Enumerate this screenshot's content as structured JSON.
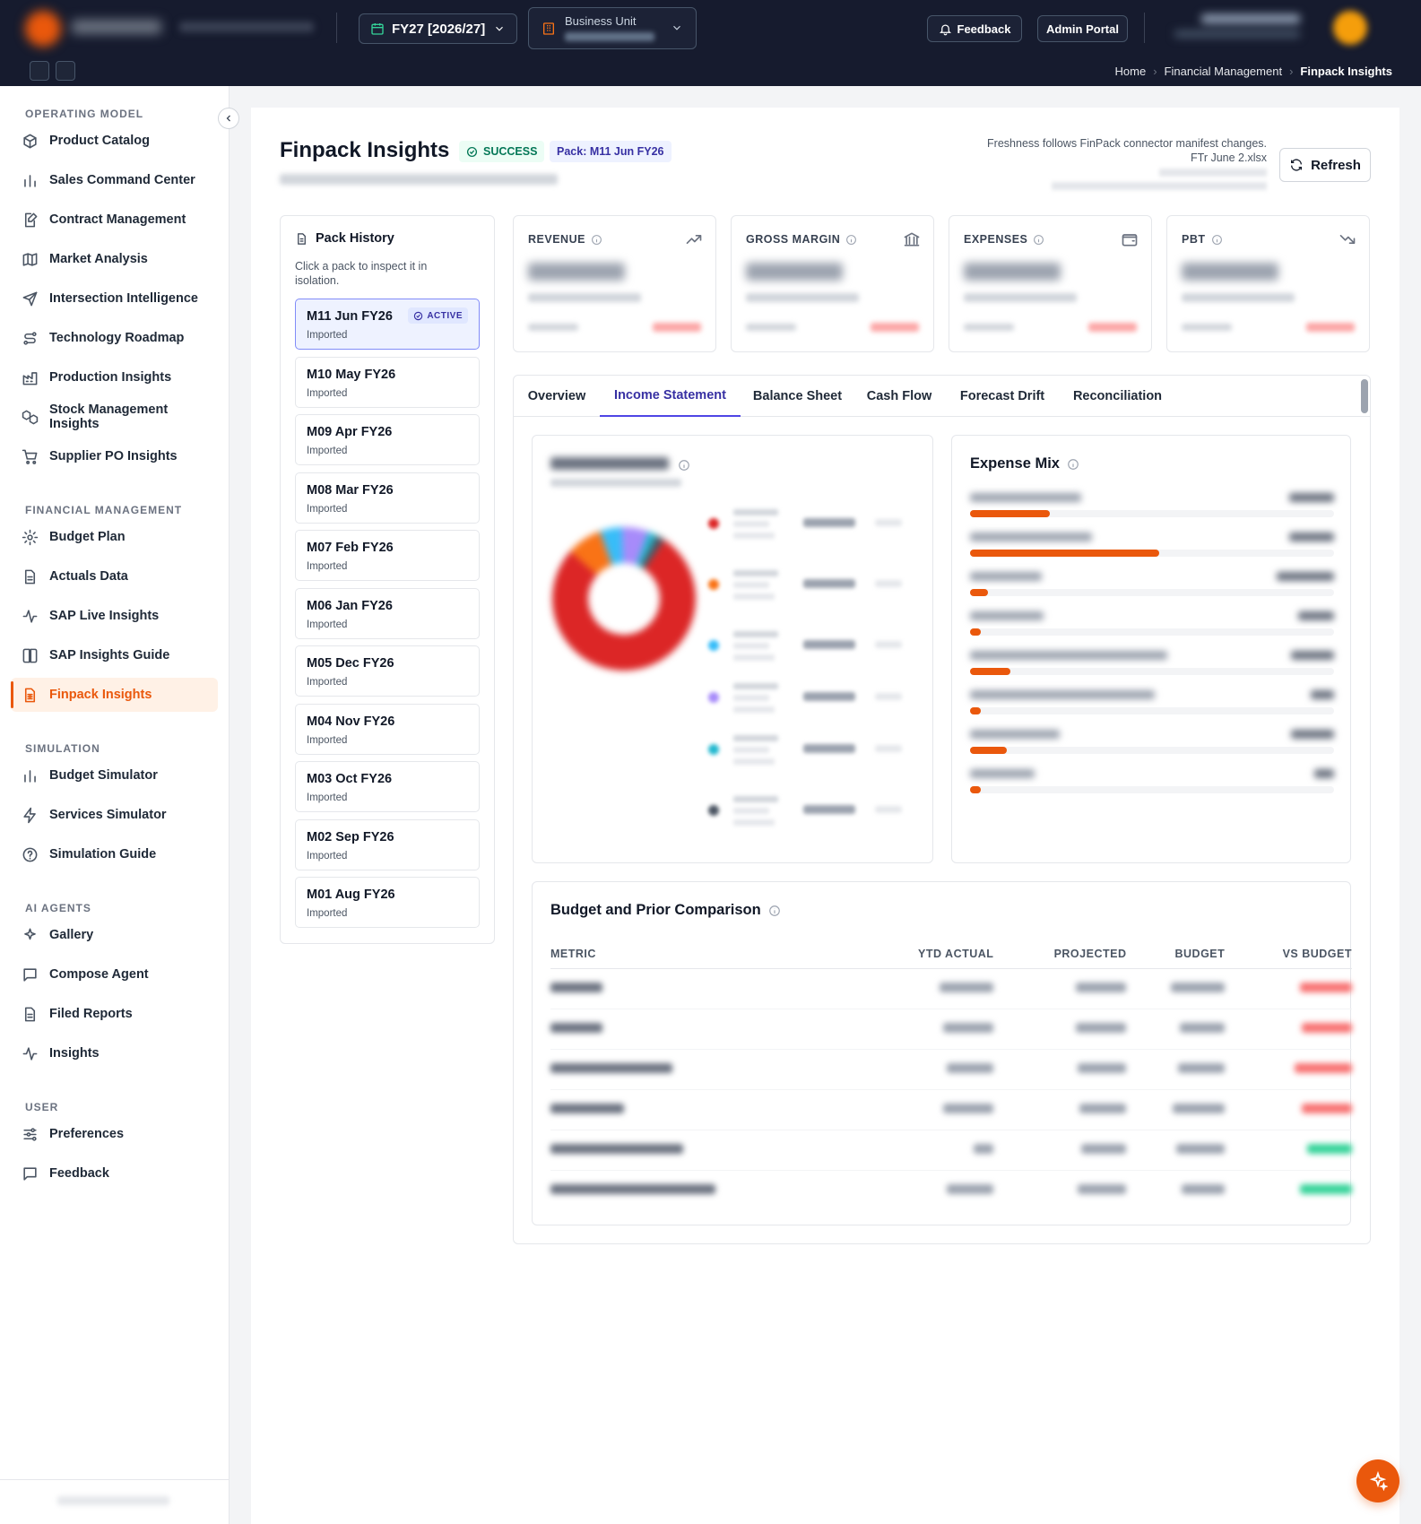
{
  "topbar": {
    "fiscal_year": "FY27 [2026/27]",
    "business_unit_label": "Business Unit",
    "feedback_label": "Feedback",
    "admin_label": "Admin Portal",
    "breadcrumbs": [
      "Home",
      "Financial Management",
      "Finpack Insights"
    ]
  },
  "sidebar": {
    "sections": [
      {
        "title": "OPERATING MODEL",
        "items": [
          {
            "label": "Product Catalog",
            "icon": "box-icon"
          },
          {
            "label": "Sales Command Center",
            "icon": "bar-chart-icon"
          },
          {
            "label": "Contract Management",
            "icon": "document-edit-icon"
          },
          {
            "label": "Market Analysis",
            "icon": "map-icon"
          },
          {
            "label": "Intersection Intelligence",
            "icon": "send-icon"
          },
          {
            "label": "Technology Roadmap",
            "icon": "route-icon"
          },
          {
            "label": "Production Insights",
            "icon": "factory-icon"
          },
          {
            "label": "Stock Management Insights",
            "icon": "boxes-icon"
          },
          {
            "label": "Supplier PO Insights",
            "icon": "cart-icon"
          }
        ]
      },
      {
        "title": "FINANCIAL MANAGEMENT",
        "items": [
          {
            "label": "Budget Plan",
            "icon": "gear-icon"
          },
          {
            "label": "Actuals Data",
            "icon": "file-icon"
          },
          {
            "label": "SAP Live Insights",
            "icon": "activity-icon"
          },
          {
            "label": "SAP Insights Guide",
            "icon": "book-icon"
          },
          {
            "label": "Finpack Insights",
            "icon": "spreadsheet-icon",
            "active": true
          }
        ]
      },
      {
        "title": "SIMULATION",
        "items": [
          {
            "label": "Budget Simulator",
            "icon": "bar-chart-icon"
          },
          {
            "label": "Services Simulator",
            "icon": "zap-icon"
          },
          {
            "label": "Simulation Guide",
            "icon": "help-circle-icon"
          }
        ]
      },
      {
        "title": "AI AGENTS",
        "items": [
          {
            "label": "Gallery",
            "icon": "sparkles-icon"
          },
          {
            "label": "Compose Agent",
            "icon": "chat-icon"
          },
          {
            "label": "Filed Reports",
            "icon": "file-icon"
          },
          {
            "label": "Insights",
            "icon": "activity-icon"
          }
        ]
      },
      {
        "title": "USER",
        "items": [
          {
            "label": "Preferences",
            "icon": "sliders-icon"
          },
          {
            "label": "Feedback",
            "icon": "chat-icon"
          }
        ]
      }
    ]
  },
  "header": {
    "title": "Finpack Insights",
    "status": "SUCCESS",
    "pack_badge": "Pack: M11 Jun FY26",
    "freshness_note": "Freshness follows FinPack connector manifest changes.",
    "file_name": "FTr June 2.xlsx",
    "refresh_label": "Refresh"
  },
  "pack_history": {
    "title": "Pack History",
    "description": "Click a pack to inspect it in isolation.",
    "active_badge": "ACTIVE",
    "packs": [
      {
        "name": "M11 Jun FY26",
        "status": "Imported",
        "active": true
      },
      {
        "name": "M10 May FY26",
        "status": "Imported"
      },
      {
        "name": "M09 Apr FY26",
        "status": "Imported"
      },
      {
        "name": "M08 Mar FY26",
        "status": "Imported"
      },
      {
        "name": "M07 Feb FY26",
        "status": "Imported"
      },
      {
        "name": "M06 Jan FY26",
        "status": "Imported"
      },
      {
        "name": "M05 Dec FY26",
        "status": "Imported"
      },
      {
        "name": "M04 Nov FY26",
        "status": "Imported"
      },
      {
        "name": "M03 Oct FY26",
        "status": "Imported"
      },
      {
        "name": "M02 Sep FY26",
        "status": "Imported"
      },
      {
        "name": "M01 Aug FY26",
        "status": "Imported"
      }
    ]
  },
  "kpis": [
    {
      "label": "REVENUE",
      "icon": "trending-up-icon"
    },
    {
      "label": "GROSS MARGIN",
      "icon": "bank-icon"
    },
    {
      "label": "EXPENSES",
      "icon": "wallet-icon"
    },
    {
      "label": "PBT",
      "icon": "trending-down-icon"
    }
  ],
  "tabs": [
    "Overview",
    "Income Statement",
    "Balance Sheet",
    "Cash Flow",
    "Forecast Drift",
    "Reconciliation"
  ],
  "active_tab": "Income Statement",
  "cost_of_sales": {
    "slice_colors": [
      "#dc2626",
      "#f97316",
      "#38bdf8",
      "#a78bfa",
      "#22b8cf",
      "#4b5563"
    ],
    "slice_shares": [
      0.77,
      0.08,
      0.05,
      0.06,
      0.02,
      0.02
    ]
  },
  "expense_mix": {
    "title": "Expense Mix",
    "bar_color": "#ea580c",
    "shares": [
      0.22,
      0.52,
      0.05,
      0.03,
      0.11,
      0.03,
      0.1,
      0.03
    ]
  },
  "comparison": {
    "title": "Budget and Prior Comparison",
    "columns": [
      "METRIC",
      "YTD ACTUAL",
      "PROJECTED",
      "BUDGET",
      "VS BUDGET"
    ],
    "row_count": 6,
    "variance_colors": [
      "#f87171",
      "#f87171",
      "#f87171",
      "#f87171",
      "#34d399",
      "#34d399"
    ]
  }
}
